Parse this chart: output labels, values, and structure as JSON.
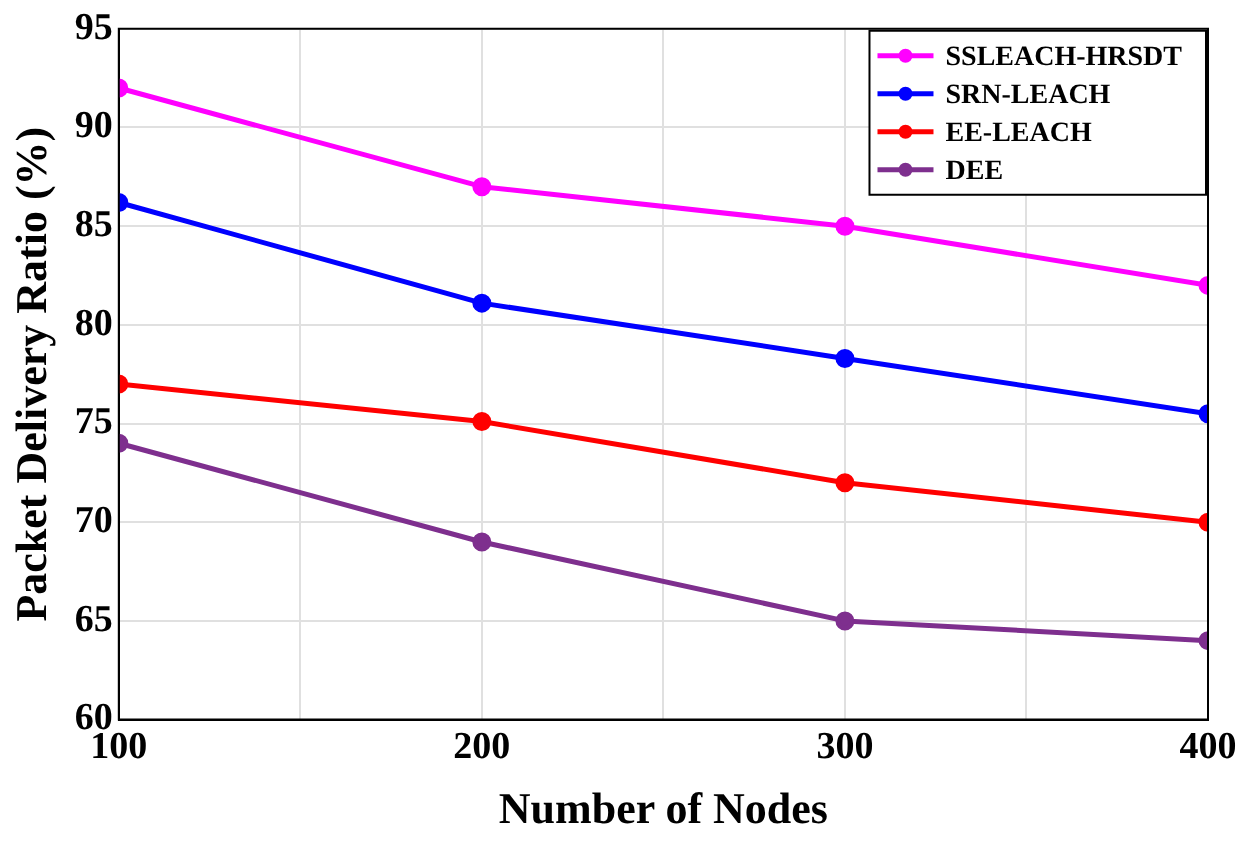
{
  "chart_data": {
    "type": "line",
    "xlabel": "Number of Nodes",
    "ylabel": "Packet Delivery Ratio (%)",
    "x": [
      100,
      200,
      300,
      400
    ],
    "series": [
      {
        "name": "SSLEACH-HRSDT",
        "color": "#ff00ff",
        "values": [
          92,
          87,
          85,
          82
        ]
      },
      {
        "name": "SRN-LEACH",
        "color": "#0000ff",
        "values": [
          86.2,
          81.1,
          78.3,
          75.5
        ]
      },
      {
        "name": "EE-LEACH",
        "color": "#ff0000",
        "values": [
          77,
          75.1,
          72,
          70
        ]
      },
      {
        "name": "DEE",
        "color": "#7e2f8e",
        "values": [
          74,
          69,
          65,
          64
        ]
      }
    ],
    "xlim": [
      100,
      400
    ],
    "xticks": [
      100,
      {
        "value": 150,
        "label": null
      },
      200,
      {
        "value": 250,
        "label": null
      },
      300,
      {
        "value": 350,
        "label": null
      },
      400
    ],
    "ylim": [
      60,
      95
    ],
    "yticks": [
      60,
      65,
      70,
      75,
      80,
      85,
      90,
      95
    ],
    "grid": true,
    "legend": "top right",
    "marker": "circle",
    "line_style": "solid"
  }
}
